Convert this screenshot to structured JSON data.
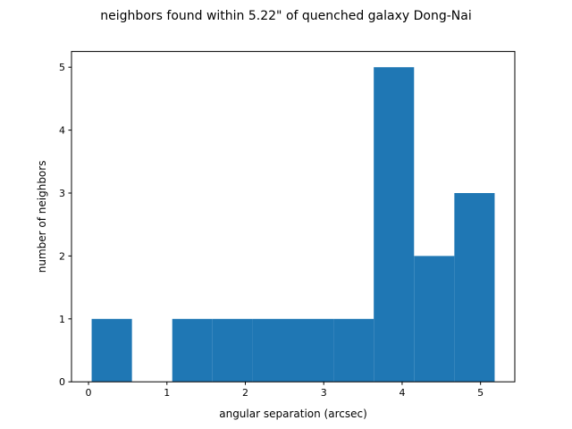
{
  "chart_data": {
    "type": "bar",
    "title": "neighbors found within 5.22\" of quenched galaxy Dong-Nai",
    "xlabel": "angular separation (arcsec)",
    "ylabel": "number of neighbors",
    "bin_edges": [
      0.04,
      0.554,
      1.068,
      1.582,
      2.096,
      2.61,
      3.124,
      3.638,
      4.152,
      4.666,
      5.18
    ],
    "values": [
      1,
      0,
      1,
      1,
      1,
      1,
      1,
      5,
      2,
      3
    ],
    "xlim": [
      -0.217,
      5.437
    ],
    "ylim": [
      0,
      5.25
    ],
    "xticks": [
      0,
      1,
      2,
      3,
      4,
      5
    ],
    "yticks": [
      0,
      1,
      2,
      3,
      4,
      5
    ],
    "bar_color": "#1f77b4",
    "grid": false,
    "legend": false
  }
}
